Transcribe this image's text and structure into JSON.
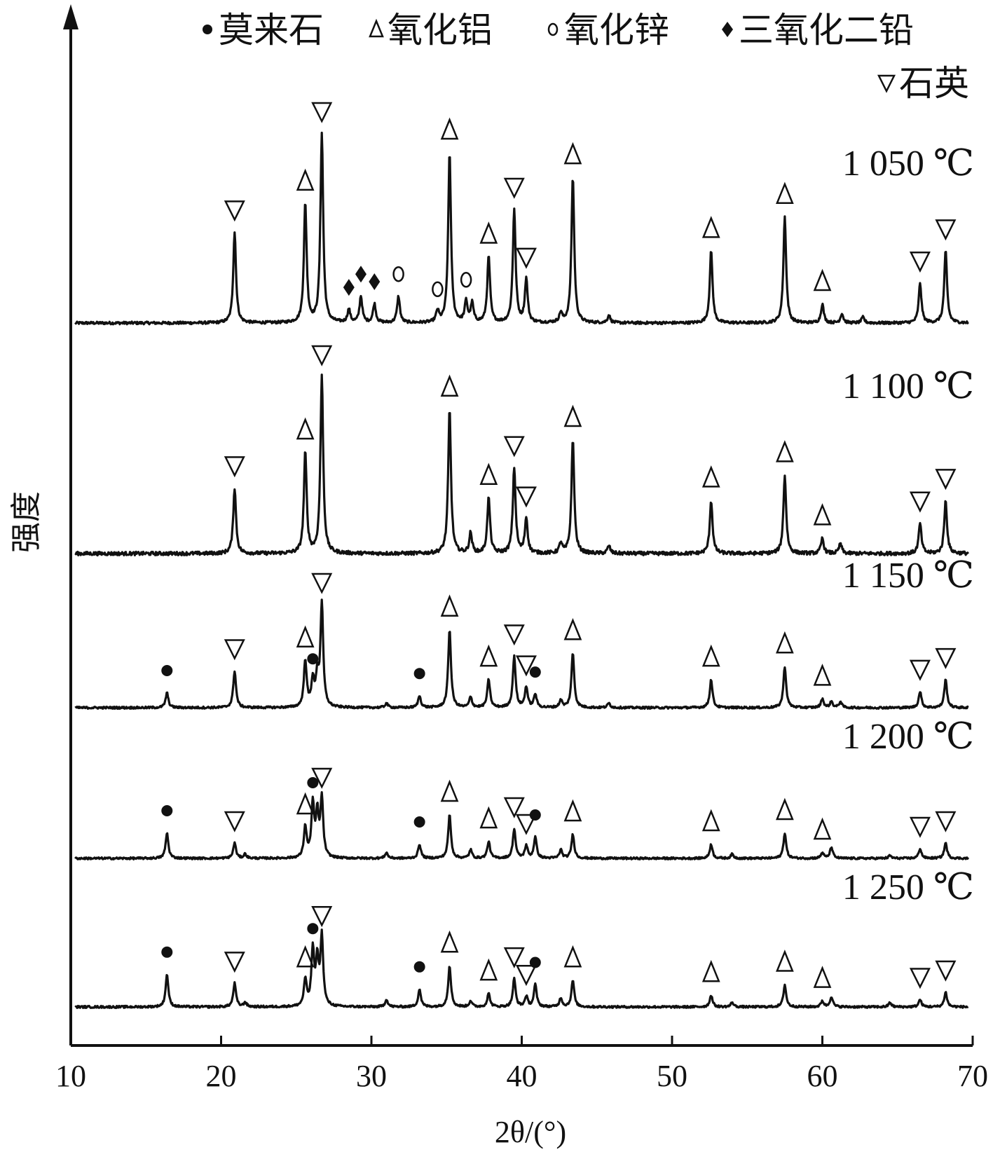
{
  "chart_data": {
    "type": "line",
    "xlabel": "2θ/(°)",
    "ylabel": "强度",
    "xlim": [
      10,
      70
    ],
    "xticks": [
      10,
      20,
      30,
      40,
      50,
      60,
      70
    ],
    "grid": false,
    "legend_position": "top-right",
    "legend": [
      {
        "marker": "filled-circle",
        "label": "莫来石"
      },
      {
        "marker": "up-triangle",
        "label": "氧化铝"
      },
      {
        "marker": "open-circle",
        "label": "氧化锌"
      },
      {
        "marker": "filled-diamond",
        "label": "三氧化二铅"
      },
      {
        "marker": "down-triangle",
        "label": "石英"
      }
    ],
    "series": [
      {
        "name": "1 050 ℃",
        "peaks": [
          {
            "x": 20.9,
            "h": 0.48,
            "phase": "石英"
          },
          {
            "x": 25.6,
            "h": 0.63,
            "phase": "氧化铝"
          },
          {
            "x": 26.7,
            "h": 1.0,
            "phase": "石英"
          },
          {
            "x": 28.5,
            "h": 0.07,
            "phase": "三氧化二铅"
          },
          {
            "x": 29.3,
            "h": 0.14,
            "phase": "三氧化二铅"
          },
          {
            "x": 30.2,
            "h": 0.1,
            "phase": "三氧化二铅"
          },
          {
            "x": 31.8,
            "h": 0.14,
            "phase": "氧化锌"
          },
          {
            "x": 34.4,
            "h": 0.06,
            "phase": "氧化锌"
          },
          {
            "x": 36.3,
            "h": 0.11,
            "phase": "氧化锌"
          },
          {
            "x": 36.7,
            "h": 0.1
          },
          {
            "x": 35.2,
            "h": 0.9,
            "phase": "氧化铝"
          },
          {
            "x": 37.8,
            "h": 0.35,
            "phase": "氧化铝"
          },
          {
            "x": 39.5,
            "h": 0.6,
            "phase": "石英"
          },
          {
            "x": 40.3,
            "h": 0.23,
            "phase": "石英"
          },
          {
            "x": 42.6,
            "h": 0.05
          },
          {
            "x": 43.4,
            "h": 0.77,
            "phase": "氧化铝"
          },
          {
            "x": 45.8,
            "h": 0.04
          },
          {
            "x": 52.6,
            "h": 0.38,
            "phase": "氧化铝"
          },
          {
            "x": 57.5,
            "h": 0.56,
            "phase": "氧化铝"
          },
          {
            "x": 60.0,
            "h": 0.1,
            "phase": "氧化铝"
          },
          {
            "x": 61.3,
            "h": 0.05
          },
          {
            "x": 62.7,
            "h": 0.03
          },
          {
            "x": 66.5,
            "h": 0.21,
            "phase": "石英"
          },
          {
            "x": 68.2,
            "h": 0.38,
            "phase": "石英"
          }
        ]
      },
      {
        "name": "1 100 ℃",
        "peaks": [
          {
            "x": 20.9,
            "h": 0.26,
            "phase": "石英"
          },
          {
            "x": 25.6,
            "h": 0.4,
            "phase": "氧化铝"
          },
          {
            "x": 26.7,
            "h": 0.7,
            "phase": "石英"
          },
          {
            "x": 35.2,
            "h": 0.57,
            "phase": "氧化铝"
          },
          {
            "x": 36.6,
            "h": 0.08
          },
          {
            "x": 37.8,
            "h": 0.22,
            "phase": "氧化铝"
          },
          {
            "x": 39.5,
            "h": 0.34,
            "phase": "石英"
          },
          {
            "x": 40.3,
            "h": 0.14,
            "phase": "石英"
          },
          {
            "x": 42.6,
            "h": 0.04
          },
          {
            "x": 43.4,
            "h": 0.45,
            "phase": "氧化铝"
          },
          {
            "x": 45.8,
            "h": 0.03
          },
          {
            "x": 52.6,
            "h": 0.21,
            "phase": "氧化铝"
          },
          {
            "x": 57.5,
            "h": 0.31,
            "phase": "氧化铝"
          },
          {
            "x": 60.0,
            "h": 0.06,
            "phase": "氧化铝"
          },
          {
            "x": 61.2,
            "h": 0.04
          },
          {
            "x": 66.5,
            "h": 0.12,
            "phase": "石英"
          },
          {
            "x": 68.2,
            "h": 0.21,
            "phase": "石英"
          }
        ]
      },
      {
        "name": "1 150 ℃",
        "peaks": [
          {
            "x": 16.4,
            "h": 0.1,
            "phase": "莫来石"
          },
          {
            "x": 20.9,
            "h": 0.25,
            "phase": "石英"
          },
          {
            "x": 25.6,
            "h": 0.32,
            "phase": "氧化铝"
          },
          {
            "x": 26.1,
            "h": 0.18,
            "phase": "莫来石"
          },
          {
            "x": 26.4,
            "h": 0.2
          },
          {
            "x": 26.7,
            "h": 0.7,
            "phase": "石英"
          },
          {
            "x": 31.0,
            "h": 0.03
          },
          {
            "x": 33.2,
            "h": 0.08,
            "phase": "莫来石"
          },
          {
            "x": 35.2,
            "h": 0.53,
            "phase": "氧化铝"
          },
          {
            "x": 36.6,
            "h": 0.07
          },
          {
            "x": 37.8,
            "h": 0.19,
            "phase": "氧化铝"
          },
          {
            "x": 39.5,
            "h": 0.35,
            "phase": "石英"
          },
          {
            "x": 40.3,
            "h": 0.14,
            "phase": "石英"
          },
          {
            "x": 40.9,
            "h": 0.09,
            "phase": "莫来石"
          },
          {
            "x": 42.6,
            "h": 0.05
          },
          {
            "x": 43.4,
            "h": 0.37,
            "phase": "氧化铝"
          },
          {
            "x": 45.8,
            "h": 0.03
          },
          {
            "x": 52.6,
            "h": 0.19,
            "phase": "氧化铝"
          },
          {
            "x": 57.5,
            "h": 0.28,
            "phase": "氧化铝"
          },
          {
            "x": 60.0,
            "h": 0.06,
            "phase": "氧化铝"
          },
          {
            "x": 60.6,
            "h": 0.04
          },
          {
            "x": 61.2,
            "h": 0.04
          },
          {
            "x": 66.5,
            "h": 0.11,
            "phase": "石英"
          },
          {
            "x": 68.2,
            "h": 0.19,
            "phase": "石英"
          }
        ]
      },
      {
        "name": "1 200 ℃",
        "peaks": [
          {
            "x": 16.4,
            "h": 0.18,
            "phase": "莫来石"
          },
          {
            "x": 20.9,
            "h": 0.11,
            "phase": "石英"
          },
          {
            "x": 21.6,
            "h": 0.03
          },
          {
            "x": 25.6,
            "h": 0.22,
            "phase": "氧化铝"
          },
          {
            "x": 26.1,
            "h": 0.38,
            "phase": "莫来石"
          },
          {
            "x": 26.4,
            "h": 0.3
          },
          {
            "x": 26.7,
            "h": 0.42,
            "phase": "石英"
          },
          {
            "x": 31.0,
            "h": 0.04
          },
          {
            "x": 33.2,
            "h": 0.1,
            "phase": "莫来石"
          },
          {
            "x": 35.2,
            "h": 0.31,
            "phase": "氧化铝"
          },
          {
            "x": 36.6,
            "h": 0.06
          },
          {
            "x": 37.8,
            "h": 0.12,
            "phase": "氧化铝"
          },
          {
            "x": 39.5,
            "h": 0.21,
            "phase": "石英"
          },
          {
            "x": 40.3,
            "h": 0.09,
            "phase": "石英"
          },
          {
            "x": 40.9,
            "h": 0.15,
            "phase": "莫来石"
          },
          {
            "x": 42.6,
            "h": 0.06
          },
          {
            "x": 43.4,
            "h": 0.17,
            "phase": "氧化铝"
          },
          {
            "x": 52.6,
            "h": 0.1,
            "phase": "氧化铝"
          },
          {
            "x": 54.0,
            "h": 0.03
          },
          {
            "x": 57.5,
            "h": 0.18,
            "phase": "氧化铝"
          },
          {
            "x": 60.0,
            "h": 0.04,
            "phase": "氧化铝"
          },
          {
            "x": 60.6,
            "h": 0.08
          },
          {
            "x": 64.5,
            "h": 0.02
          },
          {
            "x": 66.5,
            "h": 0.07,
            "phase": "石英"
          },
          {
            "x": 68.2,
            "h": 0.11,
            "phase": "石英"
          }
        ]
      },
      {
        "name": "1 250 ℃",
        "peaks": [
          {
            "x": 16.4,
            "h": 0.22,
            "phase": "莫来石"
          },
          {
            "x": 20.9,
            "h": 0.16,
            "phase": "石英"
          },
          {
            "x": 21.6,
            "h": 0.03
          },
          {
            "x": 25.6,
            "h": 0.18,
            "phase": "氧化铝"
          },
          {
            "x": 26.1,
            "h": 0.38,
            "phase": "莫来石"
          },
          {
            "x": 26.4,
            "h": 0.3
          },
          {
            "x": 26.7,
            "h": 0.47,
            "phase": "石英"
          },
          {
            "x": 31.0,
            "h": 0.05
          },
          {
            "x": 33.2,
            "h": 0.12,
            "phase": "莫来石"
          },
          {
            "x": 35.2,
            "h": 0.28,
            "phase": "氧化铝"
          },
          {
            "x": 36.6,
            "h": 0.04
          },
          {
            "x": 37.8,
            "h": 0.09,
            "phase": "氧化铝"
          },
          {
            "x": 39.5,
            "h": 0.19,
            "phase": "石英"
          },
          {
            "x": 40.3,
            "h": 0.07,
            "phase": "石英"
          },
          {
            "x": 40.9,
            "h": 0.15,
            "phase": "莫来石"
          },
          {
            "x": 42.6,
            "h": 0.06
          },
          {
            "x": 43.4,
            "h": 0.18,
            "phase": "氧化铝"
          },
          {
            "x": 52.6,
            "h": 0.08,
            "phase": "氧化铝"
          },
          {
            "x": 54.0,
            "h": 0.03
          },
          {
            "x": 57.5,
            "h": 0.15,
            "phase": "氧化铝"
          },
          {
            "x": 60.0,
            "h": 0.04,
            "phase": "氧化铝"
          },
          {
            "x": 60.6,
            "h": 0.07
          },
          {
            "x": 64.5,
            "h": 0.03
          },
          {
            "x": 66.5,
            "h": 0.05,
            "phase": "石英"
          },
          {
            "x": 68.2,
            "h": 0.1,
            "phase": "石英"
          }
        ]
      }
    ],
    "line_color": "#111111"
  }
}
